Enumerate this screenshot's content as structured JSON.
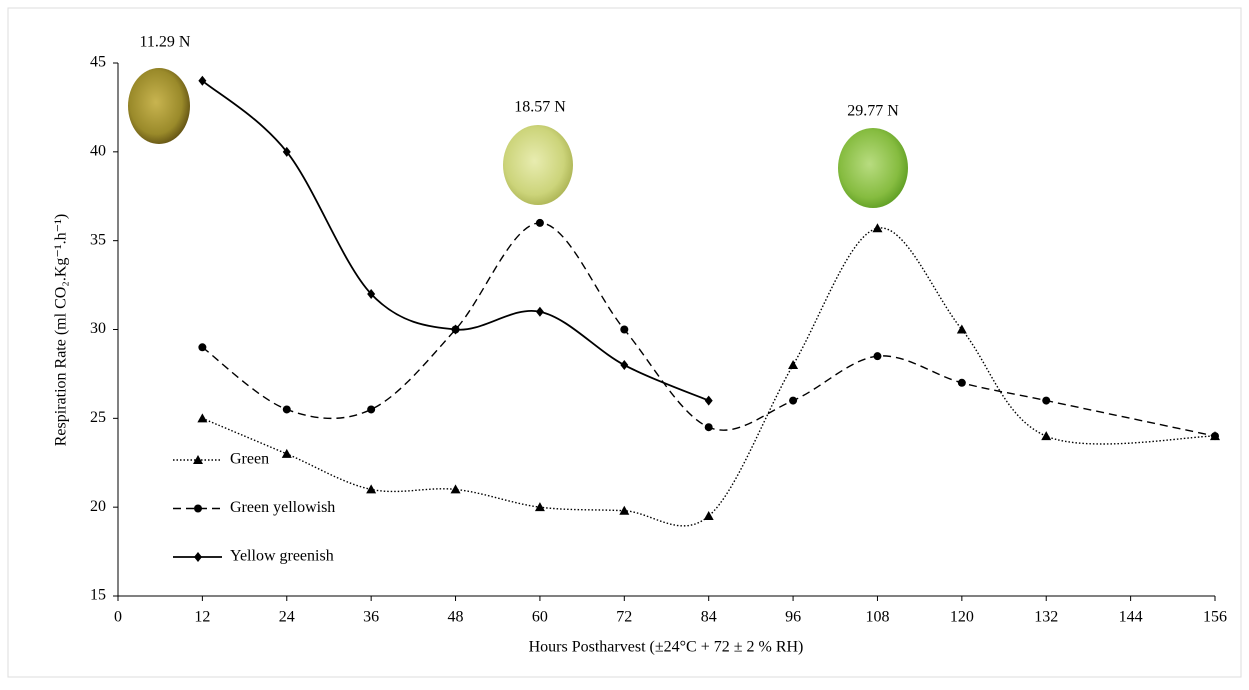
{
  "chart_data": {
    "type": "line",
    "xlabel": "Hours Postharvest (±24°C + 72 ± 2 % RH)",
    "ylabel": "Respiration Rate (ml CO₂.Kg⁻¹.h⁻¹)",
    "annotations": [
      "11.29 N",
      "18.57 N",
      "29.77 N"
    ],
    "x": [
      12,
      24,
      36,
      48,
      60,
      72,
      84,
      96,
      108,
      120,
      132,
      156
    ],
    "series": [
      {
        "name": "Green",
        "color": "#000000",
        "marker": "triangle",
        "dash": "dotted",
        "values": [
          25,
          23,
          21,
          21,
          20,
          19.8,
          19.5,
          28,
          35.7,
          30,
          24,
          24
        ]
      },
      {
        "name": "Green yellowish",
        "color": "#000000",
        "marker": "circle",
        "dash": "dashed",
        "values": [
          29,
          25.5,
          25.5,
          30,
          36,
          30,
          24.5,
          26,
          28.5,
          27,
          26,
          24
        ]
      },
      {
        "name": "Yellow greenish",
        "color": "#000000",
        "marker": "diamond",
        "dash": "solid",
        "values": [
          44,
          40,
          32,
          30,
          31,
          28,
          26,
          null,
          null,
          null,
          null,
          null
        ]
      }
    ],
    "xlim": [
      0,
      156
    ],
    "xticks": [
      0,
      12,
      24,
      36,
      48,
      60,
      72,
      84,
      96,
      108,
      120,
      132,
      144,
      156
    ],
    "ylim": [
      15,
      45
    ],
    "yticks": [
      15,
      20,
      25,
      30,
      35,
      40,
      45
    ],
    "grid": false,
    "legend": "lower-left"
  }
}
